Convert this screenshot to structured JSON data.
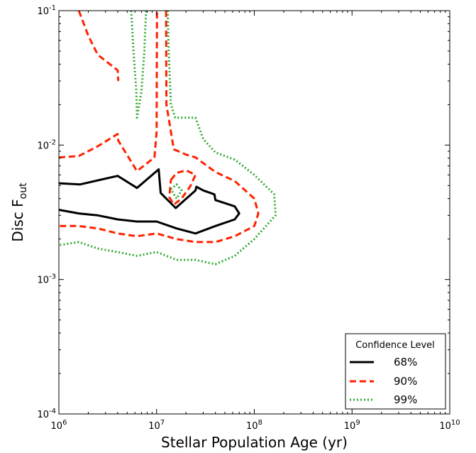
{
  "chart_data": {
    "type": "line",
    "title": "",
    "xlabel": "Stellar Population Age (yr)",
    "ylabel_main": "Disc F",
    "ylabel_sub": "out",
    "xscale": "log",
    "yscale": "log",
    "xlim": [
      1000000,
      10000000000
    ],
    "ylim": [
      0.0001,
      0.1
    ],
    "x_ticks": [
      {
        "value": 1000000,
        "base": "10",
        "exp": "6"
      },
      {
        "value": 10000000,
        "base": "10",
        "exp": "7"
      },
      {
        "value": 100000000,
        "base": "10",
        "exp": "8"
      },
      {
        "value": 1000000000,
        "base": "10",
        "exp": "9"
      },
      {
        "value": 10000000000,
        "base": "10",
        "exp": "10"
      }
    ],
    "y_ticks": [
      {
        "value": 0.0001,
        "base": "10",
        "exp": "-4"
      },
      {
        "value": 0.001,
        "base": "10",
        "exp": "-3"
      },
      {
        "value": 0.01,
        "base": "10",
        "exp": "-2"
      },
      {
        "value": 0.1,
        "base": "10",
        "exp": "-1"
      }
    ],
    "grid": false,
    "legend": {
      "title": "Confidence Level",
      "placement": "lower-right",
      "entries": [
        "68%",
        "90%",
        "99%"
      ]
    },
    "series": [
      {
        "name": "68%",
        "color": "#000000",
        "style": "solid",
        "paths": [
          [
            [
              1000000,
              0.0052
            ],
            [
              1650000,
              0.0051
            ],
            [
              2600000,
              0.0055
            ],
            [
              4000000,
              0.0059
            ],
            [
              6300000,
              0.0048
            ],
            [
              10000000,
              0.0064
            ],
            [
              10500000,
              0.0066
            ],
            [
              11000000,
              0.0044
            ],
            [
              15700000,
              0.0034
            ],
            [
              25000000,
              0.0046
            ],
            [
              25500000,
              0.0049
            ],
            [
              30000000,
              0.0046
            ],
            [
              39000000,
              0.0043
            ],
            [
              40000000,
              0.0039
            ],
            [
              50000000,
              0.0037
            ],
            [
              63000000,
              0.0035
            ],
            [
              70000000,
              0.0031
            ],
            [
              63000000,
              0.0028
            ],
            [
              40000000,
              0.0025
            ],
            [
              25000000,
              0.0022
            ],
            [
              16000000,
              0.0024
            ],
            [
              10000000,
              0.0027
            ],
            [
              6300000,
              0.0027
            ],
            [
              4000000,
              0.0028
            ],
            [
              2500000,
              0.003
            ],
            [
              1600000,
              0.0031
            ],
            [
              1000000,
              0.0033
            ]
          ]
        ]
      },
      {
        "name": "90%",
        "color": "#ff2200",
        "style": "dashed",
        "paths": [
          [
            [
              1000000,
              0.0081
            ],
            [
              1600000,
              0.0083
            ],
            [
              2500000,
              0.0098
            ],
            [
              4000000,
              0.0121
            ],
            [
              4050000,
              0.0108
            ],
            [
              6300000,
              0.0064
            ],
            [
              9500000,
              0.0081
            ],
            [
              10000000,
              0.0126
            ],
            [
              10050000,
              0.03
            ],
            [
              10100000,
              0.1
            ]
          ],
          [
            [
              1600000,
              0.1
            ],
            [
              2000000,
              0.065
            ],
            [
              2500000,
              0.047
            ],
            [
              4000000,
              0.036
            ],
            [
              4050000,
              0.03
            ]
          ],
          [
            [
              12500000,
              0.1
            ],
            [
              12600000,
              0.02
            ],
            [
              15000000,
              0.0093
            ],
            [
              20000000,
              0.0085
            ],
            [
              25000000,
              0.0081
            ],
            [
              40000000,
              0.0063
            ],
            [
              63000000,
              0.0054
            ],
            [
              100000000,
              0.004
            ],
            [
              110000000,
              0.0031
            ],
            [
              100000000,
              0.0025
            ],
            [
              63000000,
              0.0021
            ],
            [
              40000000,
              0.0019
            ],
            [
              25000000,
              0.0019
            ],
            [
              16000000,
              0.002
            ],
            [
              10000000,
              0.0022
            ],
            [
              6300000,
              0.0021
            ],
            [
              4000000,
              0.0022
            ],
            [
              2500000,
              0.0024
            ],
            [
              1600000,
              0.0025
            ],
            [
              1000000,
              0.0025
            ]
          ],
          [
            [
              14000000,
              0.0055
            ],
            [
              16000000,
              0.0062
            ],
            [
              20000000,
              0.0065
            ],
            [
              25000000,
              0.006
            ],
            [
              22000000,
              0.0049
            ],
            [
              18000000,
              0.004
            ],
            [
              15000000,
              0.0036
            ],
            [
              13500000,
              0.0041
            ],
            [
              14000000,
              0.0055
            ]
          ]
        ]
      },
      {
        "name": "99%",
        "color": "#33aa33",
        "style": "dotted",
        "paths": [
          [
            [
              5500000,
              0.1
            ],
            [
              5800000,
              0.05
            ],
            [
              6200000,
              0.025
            ],
            [
              6300000,
              0.016
            ],
            [
              7000000,
              0.025
            ],
            [
              7500000,
              0.05
            ],
            [
              7800000,
              0.1
            ]
          ],
          [
            [
              13000000,
              0.1
            ],
            [
              13300000,
              0.05
            ],
            [
              14000000,
              0.02
            ],
            [
              15500000,
              0.016
            ],
            [
              25000000,
              0.016
            ],
            [
              30000000,
              0.0111
            ],
            [
              40000000,
              0.0088
            ],
            [
              63000000,
              0.0078
            ],
            [
              100000000,
              0.006
            ],
            [
              160000000,
              0.0043
            ],
            [
              165000000,
              0.003
            ],
            [
              100000000,
              0.002
            ],
            [
              63000000,
              0.0015
            ],
            [
              40000000,
              0.0013
            ],
            [
              25000000,
              0.0014
            ],
            [
              16000000,
              0.0014
            ],
            [
              10000000,
              0.0016
            ],
            [
              6300000,
              0.0015
            ],
            [
              4000000,
              0.0016
            ],
            [
              2500000,
              0.0017
            ],
            [
              1600000,
              0.0019
            ],
            [
              1000000,
              0.0018
            ]
          ],
          [
            [
              14000000,
              0.0047
            ],
            [
              16000000,
              0.0051
            ],
            [
              18000000,
              0.0046
            ],
            [
              16000000,
              0.004
            ],
            [
              14000000,
              0.0047
            ]
          ]
        ]
      }
    ]
  }
}
